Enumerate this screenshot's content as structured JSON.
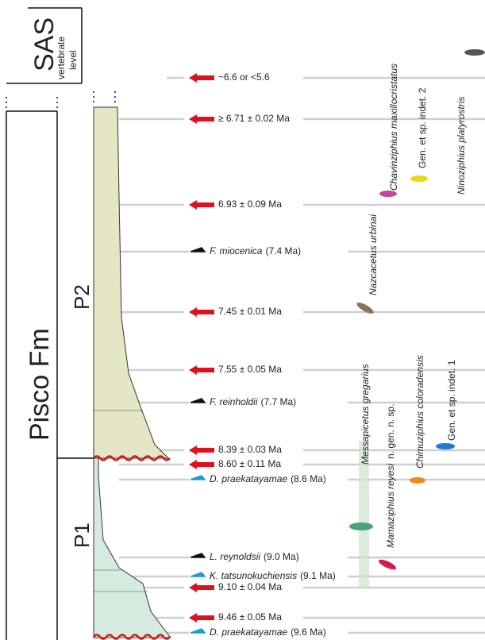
{
  "header": {
    "title": "SAS",
    "subtitle": [
      "vertebrate",
      "level"
    ]
  },
  "formation": {
    "name": "Pisco Fm",
    "members": [
      "P2",
      "P1"
    ]
  },
  "dates": [
    "~6.6 or <5.6",
    "≥ 6.71 ± 0.02 Ma",
    "6.93 ± 0.09 Ma",
    "7.45 ± 0.01 Ma",
    "7.55 ± 0.05 Ma",
    "8.39 ± 0.03 Ma",
    "8.60 ± 0.11 Ma",
    "9.10 ± 0.04 Ma",
    "9.46 ± 0.05 Ma"
  ],
  "biomarkers": [
    {
      "name": "F. miocenica",
      "age": "(7.4 Ma)"
    },
    {
      "name": "F. reinholdii",
      "age": "(7.7 Ma)"
    },
    {
      "name": "D. praekatayamae",
      "age": "(8.6 Ma)"
    },
    {
      "name": "L. reynoldsii",
      "age": "(9.0 Ma)"
    },
    {
      "name": "K. tatsunokuchiensis",
      "age": "(9.1 Ma)"
    },
    {
      "name": "D. praekatayamae",
      "age": "(9.6 Ma)"
    }
  ],
  "taxa": [
    {
      "name": "Chavinziphius maxillocristatus"
    },
    {
      "name": "Gen. et sp. indet. 2"
    },
    {
      "name": "Ninoziphius platyrostris"
    },
    {
      "name": "Nazcacetus urbinai"
    },
    {
      "name": "Messapicetus gregarius"
    },
    {
      "name": "Chimuziphius coloradensis"
    },
    {
      "name": "Gen. et sp. indet. 1"
    },
    {
      "name": "Mamaziphius reyesi",
      "note": "n. gen. n. sp."
    }
  ]
}
